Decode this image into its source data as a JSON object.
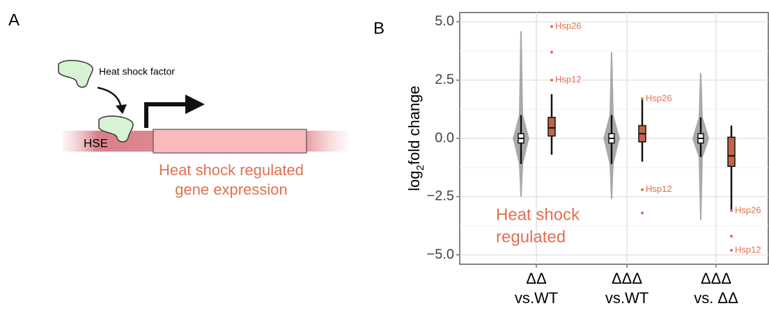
{
  "panel_labels": [
    "A",
    "B"
  ],
  "diagram": {
    "factor_label": "Heat shock factor",
    "element_label": "HSE",
    "caption": [
      "Heat shock regulated",
      "gene expression"
    ]
  },
  "chart_data": {
    "type": "violin",
    "y_label": {
      "prefix": "log",
      "subscript": "2",
      "suffix": "fold change"
    },
    "annotation": [
      "Heat shock",
      "regulated"
    ],
    "categories": [
      [
        "ΔΔ",
        "vs.WT"
      ],
      [
        "ΔΔΔ",
        "vs.WT"
      ],
      [
        "ΔΔΔ",
        "vs. ΔΔ"
      ]
    ],
    "ylim": [
      -5.4,
      5.4
    ],
    "yticks": [
      {
        "value": -5,
        "label": "−5.0"
      },
      {
        "value": -2.5,
        "label": "−2.5"
      },
      {
        "value": 0,
        "label": "0.0"
      },
      {
        "value": 2.5,
        "label": "2.5"
      },
      {
        "value": 5,
        "label": "5.0"
      }
    ],
    "grid": true,
    "series": [
      {
        "color": "#9a9a9a",
        "min": [
          -2.5,
          -2.6,
          -3.5
        ],
        "whisker_low": [
          -1.1,
          -1.1,
          -0.8
        ],
        "q1": [
          -0.2,
          -0.2,
          -0.2
        ],
        "median": [
          0,
          0,
          0
        ],
        "q3": [
          0.2,
          0.2,
          0.2
        ],
        "whisker_high": [
          1.0,
          1.0,
          0.9
        ],
        "max": [
          4.6,
          3.7,
          2.8
        ]
      },
      {
        "color": "#e07050",
        "whisker_low": [
          -0.7,
          -1.0,
          -3.1
        ],
        "q1": [
          0.1,
          -0.15,
          -1.2
        ],
        "median": [
          0.45,
          0.2,
          -0.75
        ],
        "q3": [
          0.9,
          0.55,
          0.05
        ],
        "whisker_high": [
          1.9,
          1.7,
          0.55
        ],
        "outliers": [
          [
            {
              "value": 4.8,
              "label": "Hsp26"
            },
            {
              "value": 3.7
            },
            {
              "value": 2.5,
              "label": "Hsp12"
            }
          ],
          [
            {
              "value": 1.7,
              "label": "Hsp26"
            },
            {
              "value": -2.2,
              "label": "Hsp12"
            },
            {
              "value": -3.2
            }
          ],
          [
            {
              "value": -3.1,
              "label": "Hsp26"
            },
            {
              "value": -4.2
            },
            {
              "value": -4.8,
              "label": "Hsp12"
            }
          ]
        ]
      }
    ]
  }
}
